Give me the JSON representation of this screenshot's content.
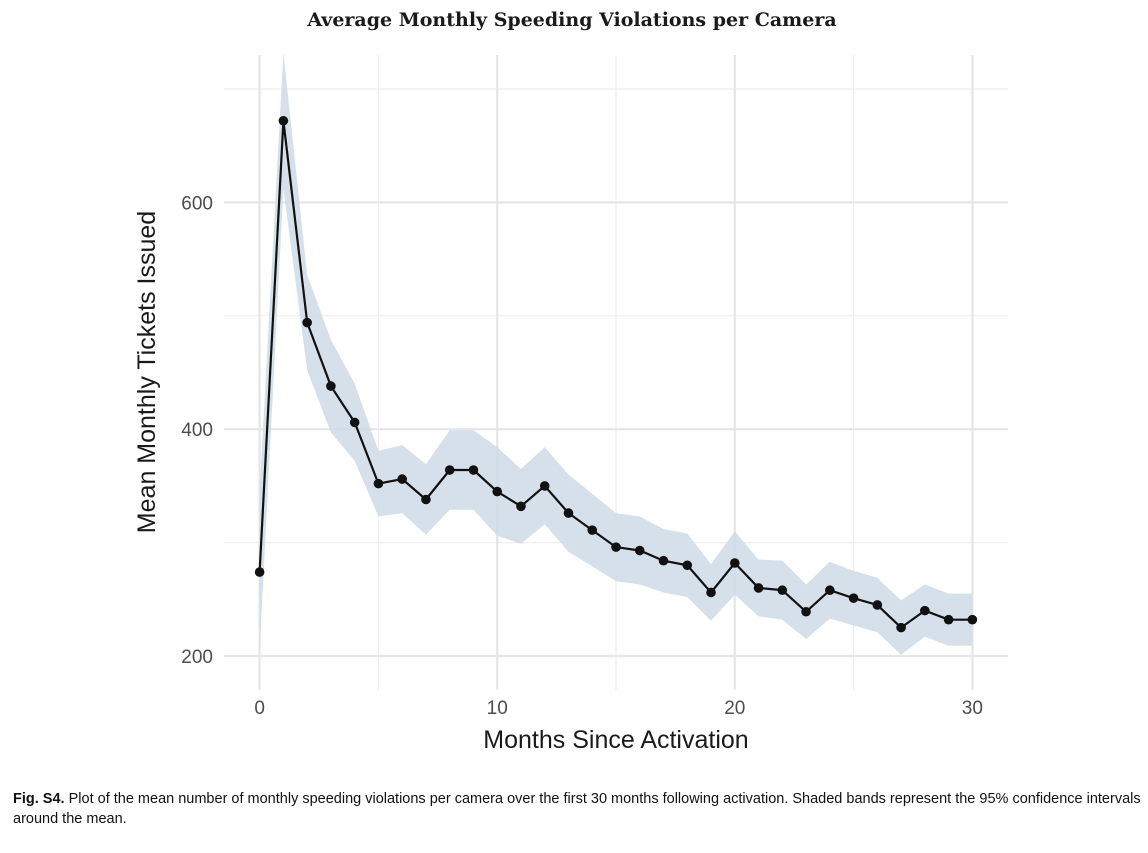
{
  "chart_data": {
    "type": "line",
    "title": "Average Monthly Speeding Violations per Camera",
    "xlabel": "Months Since Activation",
    "ylabel": "Mean Monthly Tickets Issued",
    "xlim": [
      -1.5,
      31.5
    ],
    "ylim": [
      170,
      730
    ],
    "xticks": [
      0,
      10,
      20,
      30
    ],
    "yticks": [
      200,
      400,
      600
    ],
    "x_minor": [
      5,
      15,
      25
    ],
    "y_minor": [
      300,
      500,
      700
    ],
    "series": [
      {
        "name": "Mean",
        "x": [
          0,
          1,
          2,
          3,
          4,
          5,
          6,
          7,
          8,
          9,
          10,
          11,
          12,
          13,
          14,
          15,
          16,
          17,
          18,
          19,
          20,
          21,
          22,
          23,
          24,
          25,
          26,
          27,
          28,
          29,
          30
        ],
        "values": [
          274,
          672,
          494,
          438,
          406,
          352,
          356,
          338,
          364,
          364,
          345,
          332,
          350,
          326,
          311,
          296,
          293,
          284,
          280,
          256,
          282,
          260,
          258,
          239,
          258,
          251,
          245,
          225,
          240,
          232,
          232
        ],
        "ci_lower": [
          205,
          612,
          452,
          397,
          372,
          323,
          326,
          307,
          329,
          329,
          306,
          299,
          316,
          292,
          279,
          266,
          263,
          256,
          252,
          231,
          254,
          235,
          232,
          215,
          233,
          227,
          221,
          201,
          217,
          209,
          209
        ],
        "ci_upper": [
          345,
          732,
          536,
          479,
          440,
          381,
          386,
          369,
          399,
          399,
          384,
          365,
          384,
          360,
          343,
          326,
          323,
          312,
          308,
          281,
          310,
          285,
          284,
          263,
          283,
          275,
          269,
          249,
          263,
          255,
          255
        ]
      }
    ]
  },
  "caption": {
    "label": "Fig. S4.",
    "text": "Plot of the mean number of monthly speeding violations per camera over the first 30 months following activation. Shaded bands represent the 95% confidence intervals around the mean."
  },
  "colors": {
    "line": "#111111",
    "point": "#111111",
    "band": "#cfdbe8"
  }
}
